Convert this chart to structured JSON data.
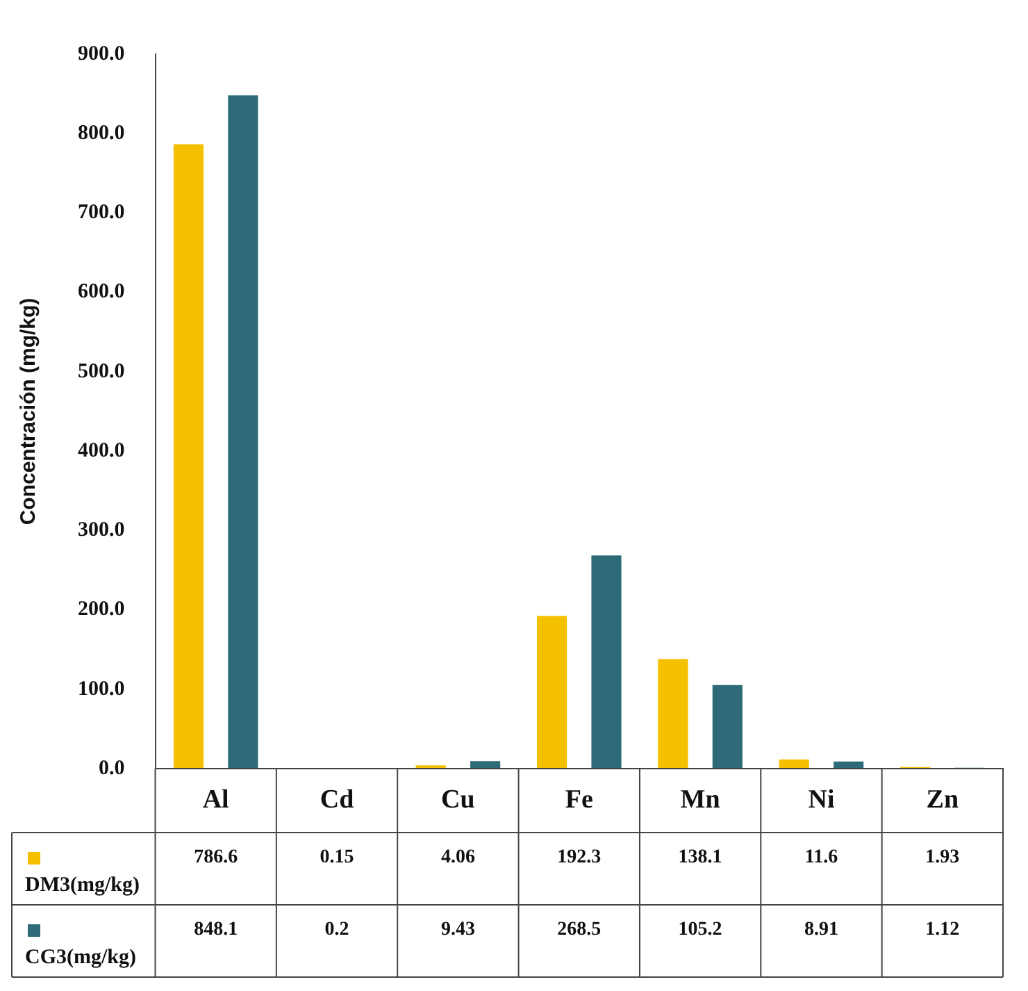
{
  "chart_data": {
    "type": "bar",
    "ylabel": "Concentración (mg/kg)",
    "categories": [
      "Al",
      "Cd",
      "Cu",
      "Fe",
      "Mn",
      "Ni",
      "Zn"
    ],
    "series": [
      {
        "name": "DM3(mg/kg)",
        "color": "#f5c000",
        "values": [
          786.6,
          0.15,
          4.06,
          192.3,
          138.1,
          11.6,
          1.93
        ]
      },
      {
        "name": "CG3(mg/kg)",
        "color": "#2e6b78",
        "values": [
          848.1,
          0.2,
          9.43,
          268.5,
          105.2,
          8.91,
          1.12
        ]
      }
    ],
    "ylim": [
      0,
      900
    ],
    "yticks": [
      {
        "value": 0,
        "label": "0.0"
      },
      {
        "value": 100,
        "label": "100.0"
      },
      {
        "value": 200,
        "label": "200.0"
      },
      {
        "value": 300,
        "label": "300.0"
      },
      {
        "value": 400,
        "label": "400.0"
      },
      {
        "value": 500,
        "label": "500.0"
      },
      {
        "value": 600,
        "label": "600.0"
      },
      {
        "value": 700,
        "label": "700.0"
      },
      {
        "value": 800,
        "label": "800.0"
      },
      {
        "value": 900,
        "label": "900.0"
      }
    ],
    "grid": false,
    "legend": "bottom",
    "data_labels": true
  }
}
